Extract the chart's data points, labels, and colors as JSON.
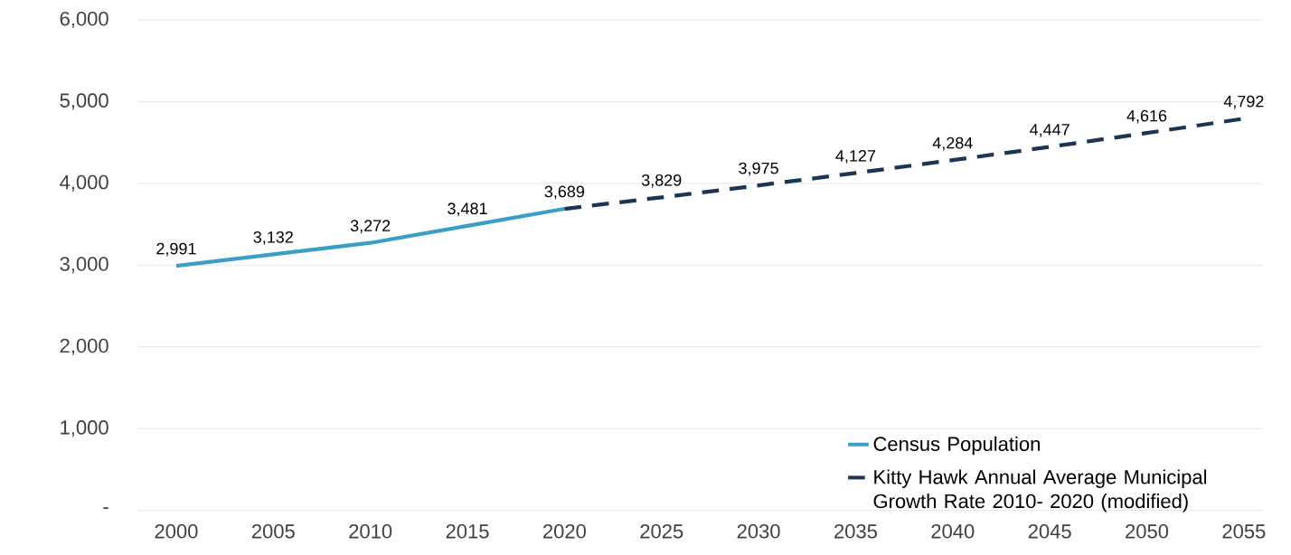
{
  "chart_data": {
    "type": "line",
    "xlim": [
      1998,
      2056
    ],
    "ylim": [
      0,
      6000
    ],
    "xticks": [
      2000,
      2005,
      2010,
      2015,
      2020,
      2025,
      2030,
      2035,
      2040,
      2045,
      2050,
      2055
    ],
    "yticks": [
      {
        "value": 0,
        "label": "-"
      },
      {
        "value": 1000,
        "label": "1,000"
      },
      {
        "value": 2000,
        "label": "2,000"
      },
      {
        "value": 3000,
        "label": "3,000"
      },
      {
        "value": 4000,
        "label": "4,000"
      },
      {
        "value": 5000,
        "label": "5,000"
      },
      {
        "value": 6000,
        "label": "6,000"
      }
    ],
    "grid": "y",
    "legend": "bottom right",
    "series": [
      {
        "name": "Census Population",
        "color": "#3a9fc4",
        "line_style": "solid",
        "x": [
          2000,
          2005,
          2010,
          2015,
          2020
        ],
        "values": [
          2991,
          3132,
          3272,
          3481,
          3689
        ],
        "value_labels": [
          "2,991",
          "3,132",
          "3,272",
          "3,481",
          "3,689"
        ]
      },
      {
        "name": "Kitty Hawk Annual Average Municipal Growth Rate 2010- 2020 (modified)",
        "color": "#1c3553",
        "line_style": "dashed",
        "x": [
          2020,
          2025,
          2030,
          2035,
          2040,
          2045,
          2050,
          2055
        ],
        "values": [
          3689,
          3829,
          3975,
          4127,
          4284,
          4447,
          4616,
          4792
        ],
        "value_labels": [
          null,
          "3,829",
          "3,975",
          "4,127",
          "4,284",
          "4,447",
          "4,616",
          "4,792"
        ]
      }
    ]
  }
}
